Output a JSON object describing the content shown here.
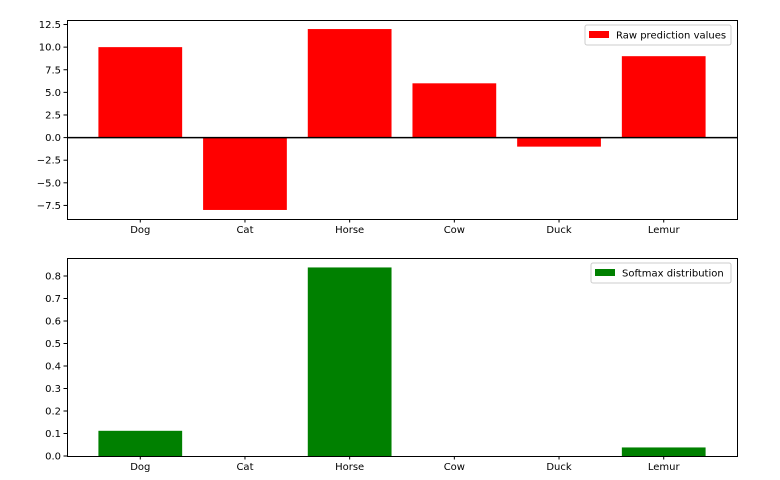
{
  "chart_data": [
    {
      "type": "bar",
      "categories": [
        "Dog",
        "Cat",
        "Horse",
        "Cow",
        "Duck",
        "Lemur"
      ],
      "series": [
        {
          "name": "Raw prediction values",
          "values": [
            10,
            -8,
            12,
            6,
            -1,
            9
          ],
          "color": "#ff0000"
        }
      ],
      "ylim": [
        -9,
        13
      ],
      "yticks": [
        -7.5,
        -5.0,
        -2.5,
        0.0,
        2.5,
        5.0,
        7.5,
        10.0,
        12.5
      ],
      "ytick_labels": [
        "−7.5",
        "−5.0",
        "−2.5",
        "0.0",
        "2.5",
        "5.0",
        "7.5",
        "10.0",
        "12.5"
      ],
      "zero_line": true,
      "grid": false,
      "legend_position": "upper right",
      "title": "",
      "xlabel": "",
      "ylabel": ""
    },
    {
      "type": "bar",
      "categories": [
        "Dog",
        "Cat",
        "Horse",
        "Cow",
        "Duck",
        "Lemur"
      ],
      "series": [
        {
          "name": "Softmax distribution",
          "values": [
            0.112,
            0.0,
            0.838,
            0.0,
            0.0,
            0.038
          ],
          "color": "#008000"
        }
      ],
      "ylim": [
        0,
        0.88
      ],
      "yticks": [
        0.0,
        0.1,
        0.2,
        0.3,
        0.4,
        0.5,
        0.6,
        0.7,
        0.8
      ],
      "ytick_labels": [
        "0.0",
        "0.1",
        "0.2",
        "0.3",
        "0.4",
        "0.5",
        "0.6",
        "0.7",
        "0.8"
      ],
      "zero_line": false,
      "grid": false,
      "legend_position": "upper right",
      "title": "",
      "xlabel": "",
      "ylabel": ""
    }
  ]
}
